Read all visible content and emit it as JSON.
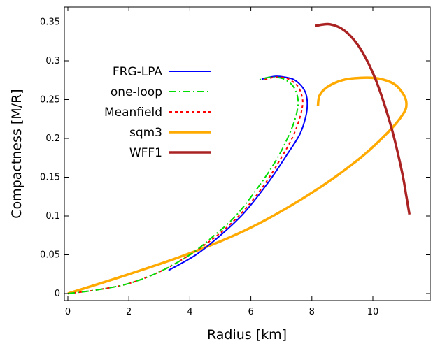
{
  "chart_data": {
    "type": "line",
    "title": "",
    "xlabel": "Radius [km]",
    "ylabel": "Compactness [M/R]",
    "xlim": [
      0,
      12
    ],
    "ylim": [
      0,
      0.36
    ],
    "xticks": [
      0,
      2,
      4,
      6,
      8,
      10,
      12
    ],
    "yticks": [
      0,
      0.05,
      0.1,
      0.15,
      0.2,
      0.25,
      0.3,
      0.35
    ],
    "ytick_labels": [
      "0",
      "0.05",
      "0.1",
      "0.15",
      "0.2",
      "0.25",
      "0.3",
      "0.35"
    ],
    "legend_position": "upper-left",
    "grid": false,
    "series": [
      {
        "name": "FRG-LPA",
        "color": "#0000ff",
        "dash": "solid",
        "x": [
          3.3,
          4.2,
          5.0,
          5.8,
          6.6,
          7.2,
          7.6,
          7.8,
          7.85,
          7.8,
          7.65,
          7.4,
          7.1,
          6.8,
          6.5,
          6.35
        ],
        "y": [
          0.03,
          0.05,
          0.075,
          0.105,
          0.145,
          0.18,
          0.205,
          0.228,
          0.245,
          0.258,
          0.268,
          0.276,
          0.279,
          0.28,
          0.278,
          0.276
        ]
      },
      {
        "name": "one-loop",
        "color": "#00dd00",
        "dash": "dash-dot",
        "x": [
          0.0,
          1.0,
          2.0,
          3.0,
          4.0,
          4.8,
          5.5,
          6.2,
          6.8,
          7.2,
          7.45,
          7.55,
          7.5,
          7.35,
          7.05,
          6.7,
          6.4,
          6.25
        ],
        "y": [
          0.0,
          0.005,
          0.013,
          0.028,
          0.05,
          0.075,
          0.1,
          0.135,
          0.17,
          0.2,
          0.225,
          0.245,
          0.258,
          0.269,
          0.277,
          0.279,
          0.277,
          0.275
        ]
      },
      {
        "name": "Meanfield",
        "color": "#ff0000",
        "dash": "dotted",
        "x": [
          0.0,
          1.0,
          2.0,
          3.0,
          4.0,
          4.9,
          5.7,
          6.4,
          6.95,
          7.35,
          7.6,
          7.7,
          7.65,
          7.5,
          7.2,
          6.85,
          6.55,
          6.4
        ],
        "y": [
          0.0,
          0.005,
          0.013,
          0.028,
          0.05,
          0.075,
          0.104,
          0.138,
          0.172,
          0.2,
          0.226,
          0.245,
          0.258,
          0.269,
          0.277,
          0.279,
          0.277,
          0.275
        ]
      },
      {
        "name": "sqm3",
        "color": "#ffaa00",
        "dash": "solid",
        "x": [
          0.0,
          2.0,
          4.0,
          6.0,
          8.0,
          9.5,
          10.5,
          11.0,
          11.1,
          11.0,
          10.7,
          10.2,
          9.6,
          9.0,
          8.5,
          8.25,
          8.2
        ],
        "y": [
          0.0,
          0.025,
          0.052,
          0.085,
          0.13,
          0.172,
          0.208,
          0.232,
          0.245,
          0.257,
          0.27,
          0.277,
          0.278,
          0.275,
          0.266,
          0.255,
          0.242
        ]
      },
      {
        "name": "WFF1",
        "color": "#aa2222",
        "dash": "solid",
        "x": [
          8.1,
          8.6,
          9.1,
          9.6,
          10.1,
          10.6,
          10.95,
          11.1,
          11.2
        ],
        "y": [
          0.345,
          0.347,
          0.338,
          0.315,
          0.275,
          0.215,
          0.158,
          0.125,
          0.102
        ]
      }
    ]
  }
}
